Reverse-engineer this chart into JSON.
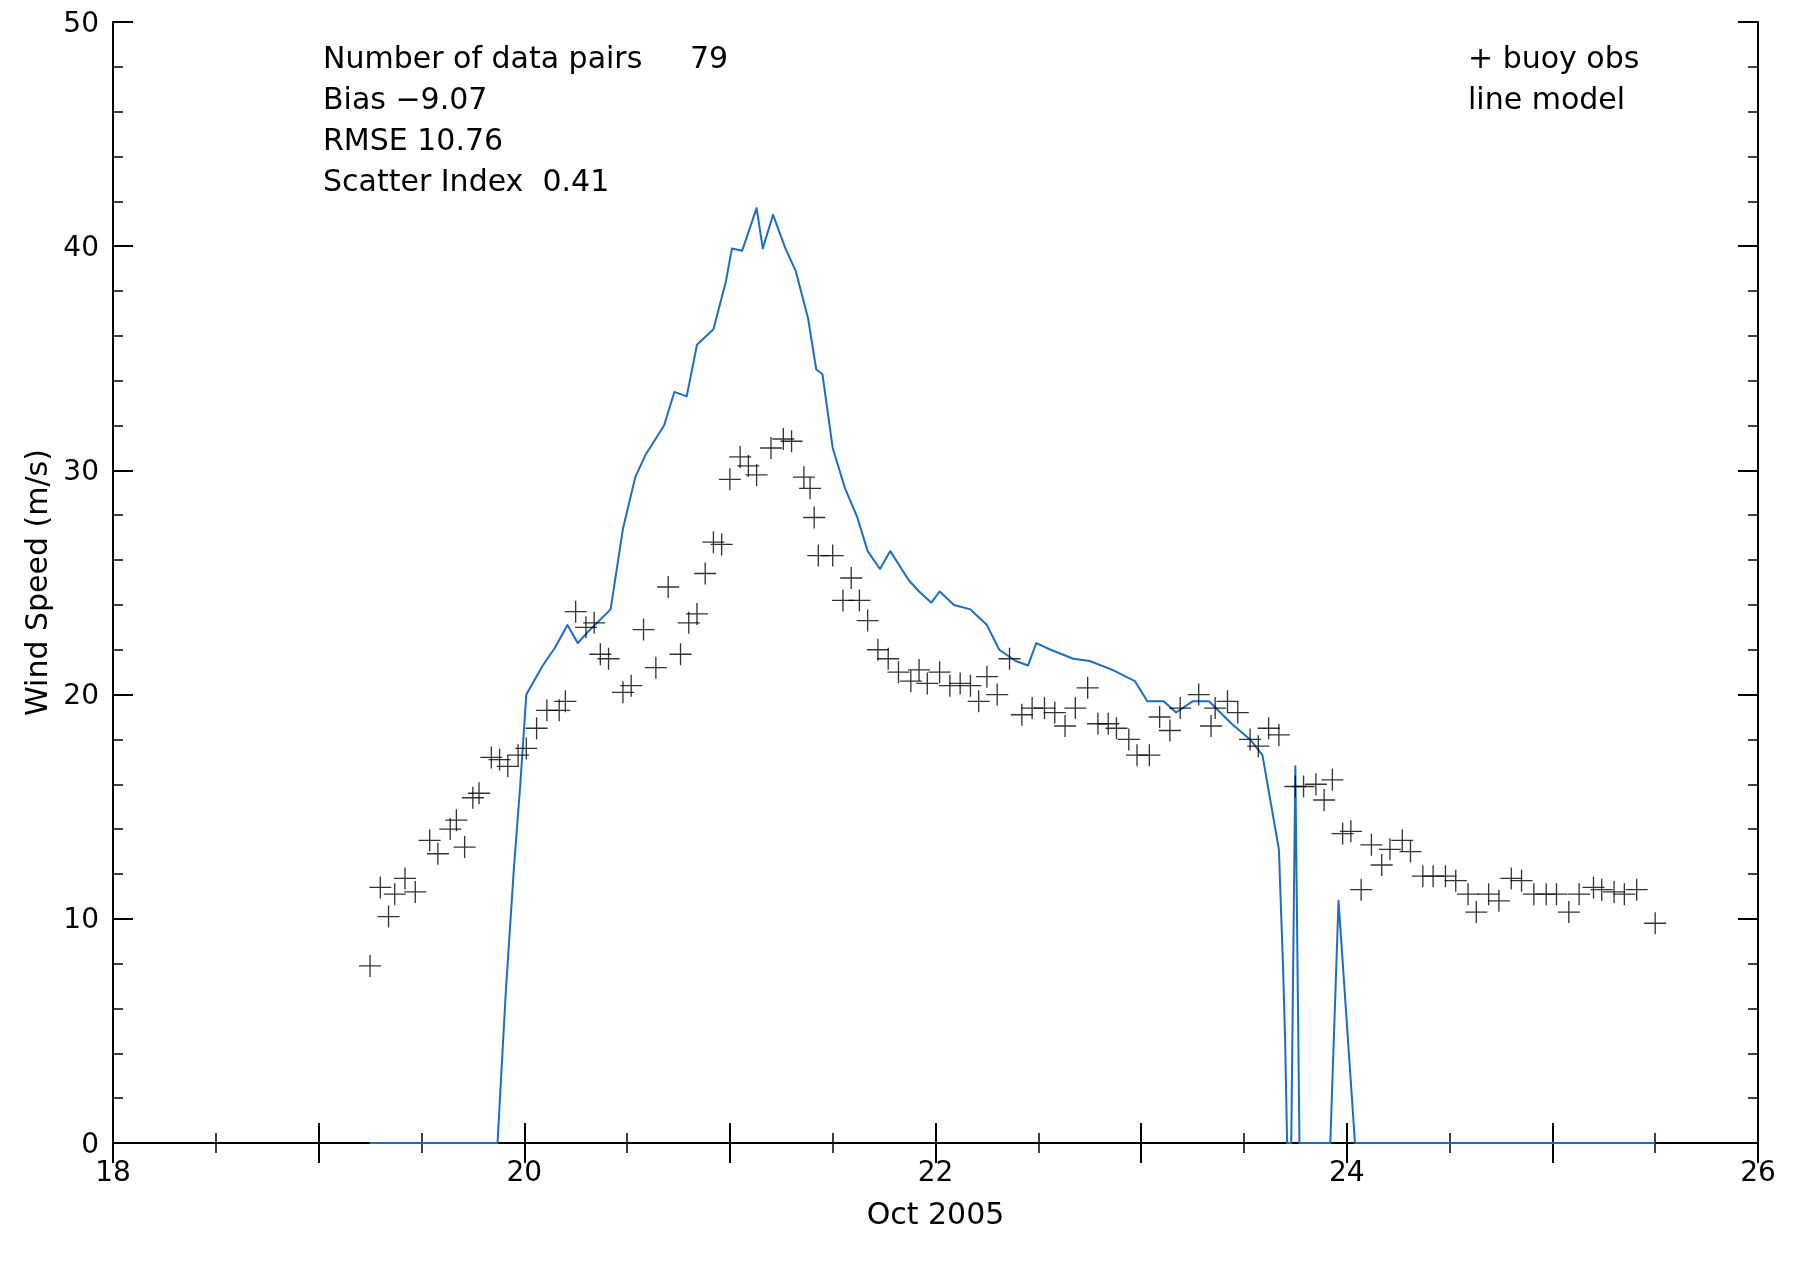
{
  "chart_data": {
    "type": "scatter",
    "xlabel": "Oct 2005",
    "ylabel": "Wind Speed (m/s)",
    "xlim": [
      18,
      26
    ],
    "ylim": [
      0,
      50
    ],
    "xticks": [
      18,
      {
        "value": 19,
        "label": null
      },
      20,
      {
        "value": 21,
        "label": null
      },
      22,
      {
        "value": 23,
        "label": null
      },
      24,
      {
        "value": 25,
        "label": null
      },
      26
    ],
    "yticks": [
      0,
      10,
      20,
      30,
      40,
      50
    ],
    "grid": false,
    "marker": "cross",
    "annotations": [
      "Number of data pairs     79",
      "Bias −9.07",
      "RMSE 10.76",
      "Scatter Index  0.41",
      "+ buoy obs",
      "line model"
    ],
    "series": [
      {
        "color": "#000000",
        "x": [
          19.25,
          19.3,
          19.34,
          19.37,
          19.42,
          19.47,
          19.54,
          19.58,
          19.64,
          19.67,
          19.71,
          19.75,
          19.78,
          19.84,
          19.88,
          19.92,
          19.97,
          20.01,
          20.06,
          20.11,
          20.17,
          20.2,
          20.25,
          20.3,
          20.34,
          20.37,
          20.41,
          20.48,
          20.52,
          20.58,
          20.64,
          20.7,
          20.76,
          20.8,
          20.84,
          20.88,
          20.92,
          20.96,
          21.0,
          21.05,
          21.09,
          21.13,
          21.2,
          21.26,
          21.3,
          21.36,
          21.39,
          21.41,
          21.43,
          21.5,
          21.55,
          21.59,
          21.63,
          21.67,
          21.72,
          21.77,
          21.82,
          21.88,
          21.92,
          21.96,
          22.02,
          22.07,
          22.12,
          22.17,
          22.21,
          22.25,
          22.3,
          22.36,
          22.42,
          22.47,
          22.53,
          22.58,
          22.63,
          22.68,
          22.74,
          22.79,
          22.84,
          22.88,
          22.94,
          22.98,
          23.04,
          23.09,
          23.14,
          23.19,
          23.28,
          23.34,
          23.36,
          23.42,
          23.47,
          23.53,
          23.57,
          23.62,
          23.67,
          23.75,
          23.79,
          23.85,
          23.89,
          23.93,
          23.98,
          24.02,
          24.07,
          24.12,
          24.17,
          24.21,
          24.27,
          24.31,
          24.37,
          24.42,
          24.48,
          24.53,
          24.59,
          24.63,
          24.69,
          24.74,
          24.8,
          24.85,
          24.91,
          24.97,
          25.02,
          25.08,
          25.13,
          25.2,
          25.24,
          25.3,
          25.35,
          25.41,
          25.5
        ],
        "values": [
          7.9,
          11.4,
          10.1,
          11.1,
          11.8,
          11.2,
          13.5,
          12.9,
          14.0,
          14.4,
          13.2,
          15.4,
          15.6,
          17.2,
          17.1,
          16.8,
          17.3,
          17.6,
          18.5,
          19.3,
          19.3,
          19.7,
          23.7,
          23.0,
          23.2,
          21.8,
          21.6,
          20.1,
          20.4,
          22.9,
          21.2,
          24.8,
          21.8,
          23.2,
          23.6,
          25.4,
          26.8,
          26.7,
          29.6,
          30.6,
          30.2,
          29.8,
          31.0,
          31.4,
          31.3,
          29.7,
          29.2,
          27.9,
          26.2,
          26.2,
          24.2,
          25.2,
          24.2,
          23.3,
          22.0,
          21.6,
          21.0,
          20.6,
          21.1,
          20.5,
          21.0,
          20.4,
          20.5,
          20.4,
          19.7,
          20.8,
          20.0,
          21.6,
          19.1,
          19.4,
          19.4,
          19.2,
          18.6,
          19.4,
          20.3,
          18.7,
          18.7,
          18.5,
          18.0,
          17.3,
          17.3,
          19.0,
          18.4,
          19.4,
          20.0,
          18.6,
          19.4,
          19.7,
          19.2,
          18.0,
          17.7,
          18.5,
          18.2,
          15.9,
          15.9,
          16.0,
          15.3,
          16.2,
          13.8,
          13.9,
          11.3,
          13.3,
          12.4,
          13.1,
          13.5,
          13.0,
          11.9,
          11.9,
          11.9,
          11.7,
          11.1,
          10.3,
          11.1,
          10.8,
          11.8,
          11.7,
          11.1,
          11.1,
          11.1,
          10.3,
          11.1,
          11.4,
          11.3,
          11.2,
          11.1,
          11.3,
          9.8
        ]
      },
      {
        "type": "line",
        "color": "#1f6dbf",
        "marker": "none",
        "x": [
          19.25,
          19.87,
          19.91,
          19.95,
          19.98,
          20.01,
          20.09,
          20.15,
          20.21,
          20.26,
          20.31,
          20.42,
          20.48,
          20.54,
          20.59,
          20.68,
          20.73,
          20.79,
          20.84,
          20.92,
          20.98,
          21.01,
          21.06,
          21.13,
          21.16,
          21.21,
          21.27,
          21.32,
          21.38,
          21.42,
          21.45,
          21.5,
          21.56,
          21.62,
          21.67,
          21.73,
          21.78,
          21.87,
          21.92,
          21.98,
          22.02,
          22.09,
          22.17,
          22.25,
          22.31,
          22.39,
          22.45,
          22.49,
          22.56,
          22.67,
          22.75,
          22.86,
          22.97,
          23.03,
          23.11,
          23.17,
          23.25,
          23.33,
          23.44,
          23.53,
          23.59,
          23.67,
          23.69,
          23.7,
          23.71,
          23.73,
          23.75,
          23.77,
          23.79,
          23.92,
          23.96,
          24.04,
          25.5
        ],
        "values": [
          0,
          0,
          6.7,
          12.3,
          15.9,
          20.0,
          21.3,
          22.1,
          23.1,
          22.3,
          22.8,
          23.8,
          27.4,
          29.7,
          30.7,
          32.0,
          33.5,
          33.3,
          35.6,
          36.3,
          38.4,
          39.9,
          39.8,
          41.7,
          39.9,
          41.4,
          39.9,
          38.9,
          36.8,
          34.5,
          34.3,
          31.0,
          29.2,
          27.9,
          26.4,
          25.6,
          26.4,
          25.1,
          24.6,
          24.1,
          24.6,
          24.0,
          23.8,
          23.1,
          22.0,
          21.5,
          21.3,
          22.3,
          22.0,
          21.6,
          21.5,
          21.1,
          20.6,
          19.7,
          19.7,
          19.2,
          19.7,
          19.7,
          18.7,
          18.0,
          17.3,
          13.1,
          7.9,
          4.7,
          0,
          0,
          16.8,
          0,
          0,
          0,
          10.8,
          0,
          0
        ]
      }
    ]
  }
}
